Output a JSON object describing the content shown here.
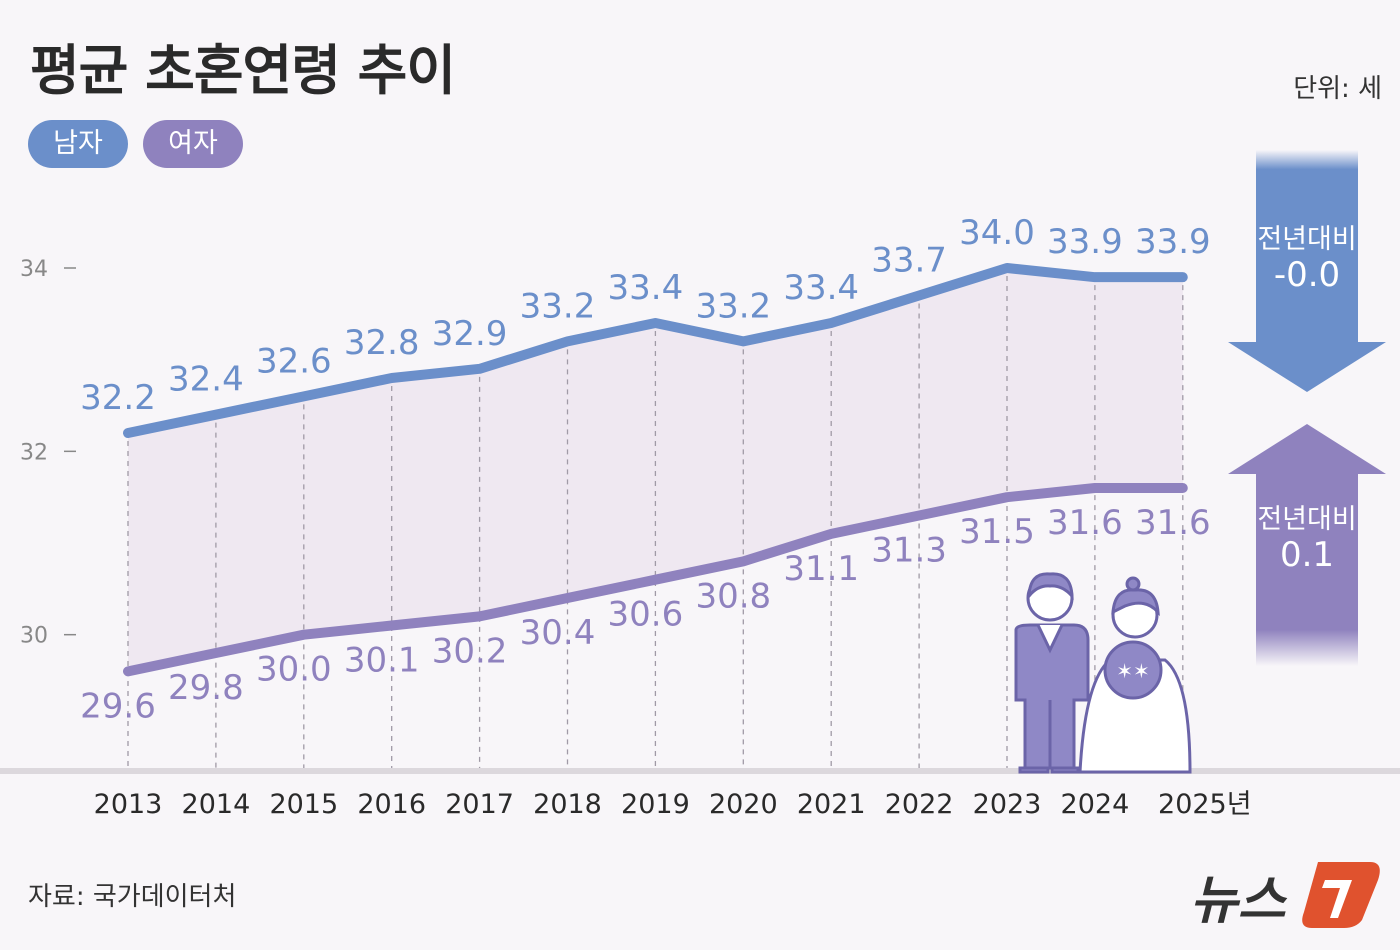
{
  "title": "평균 초혼연령 추이",
  "unit": "단위: 세",
  "source": "자료: 국가데이터처",
  "logo": "뉴스1",
  "colors": {
    "men": "#6b8fca",
    "women": "#8f82be",
    "fill": "#efe8f1",
    "logo_red": "#e0522e"
  },
  "change": {
    "men": {
      "label": "전년대비",
      "value": "-0.0",
      "direction": "down"
    },
    "women": {
      "label": "전년대비",
      "value": "0.1",
      "direction": "up"
    }
  },
  "chart_data": {
    "type": "line",
    "title": "평균 초혼연령 추이",
    "categories": [
      "2013",
      "2014",
      "2015",
      "2016",
      "2017",
      "2018",
      "2019",
      "2020",
      "2021",
      "2022",
      "2023",
      "2024",
      "2025"
    ],
    "x_tick_labels": [
      "2013",
      "2014",
      "2015",
      "2016",
      "2017",
      "2018",
      "2019",
      "2020",
      "2021",
      "2022",
      "2023",
      "2024",
      "2025년"
    ],
    "y_ticks": [
      "34",
      "32",
      "30"
    ],
    "ylim": [
      28.7,
      35
    ],
    "grid": "vertical dashed",
    "legend": "top-left",
    "series": [
      {
        "name": "남자",
        "values": [
          32.2,
          32.4,
          32.6,
          32.8,
          32.9,
          33.2,
          33.4,
          33.2,
          33.4,
          33.7,
          34.0,
          33.9,
          33.9
        ],
        "labels": [
          "32.2",
          "32.4",
          "32.6",
          "32.8",
          "32.9",
          "33.2",
          "33.4",
          "33.2",
          "33.4",
          "33.7",
          "34.0",
          "33.9",
          "33.9"
        ]
      },
      {
        "name": "여자",
        "values": [
          29.6,
          29.8,
          30.0,
          30.1,
          30.2,
          30.4,
          30.6,
          30.8,
          31.1,
          31.3,
          31.5,
          31.6,
          31.6
        ],
        "labels": [
          "29.6",
          "29.8",
          "30.0",
          "30.1",
          "30.2",
          "30.4",
          "30.6",
          "30.8",
          "31.1",
          "31.3",
          "31.5",
          "31.6",
          "31.6"
        ]
      }
    ]
  }
}
